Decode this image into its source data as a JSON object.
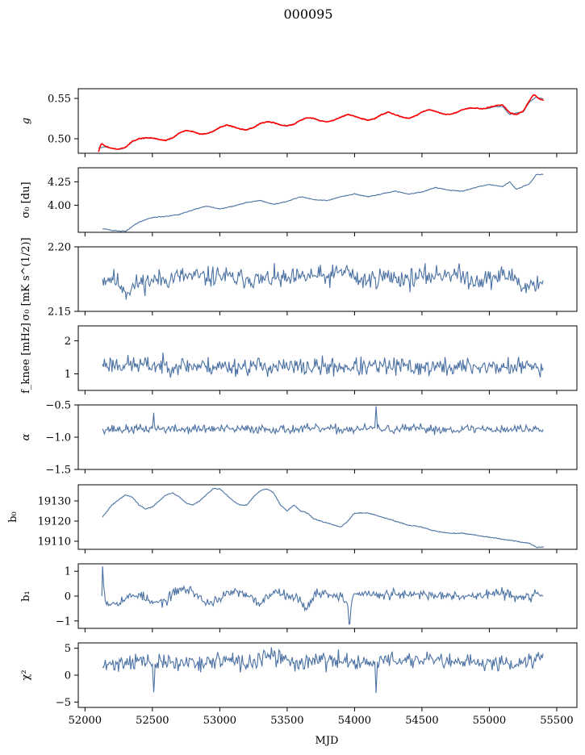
{
  "figure": {
    "title": "000095",
    "xlabel": "MJD"
  },
  "chart_data": [
    {
      "type": "line",
      "ylabel": "g",
      "ylim": [
        0.482,
        0.562
      ],
      "yticks": [
        0.5,
        0.55
      ],
      "ytick_labels": [
        "0.50",
        "0.55"
      ],
      "xlim": [
        51950,
        55650
      ],
      "series": [
        {
          "color": "#4C72A4",
          "x": [
            52100,
            52150,
            52200,
            52250,
            52300,
            52350,
            52400,
            52450,
            52500,
            52550,
            52600,
            52650,
            52700,
            52750,
            52800,
            52850,
            52900,
            52950,
            53000,
            53050,
            53100,
            53150,
            53200,
            53250,
            53300,
            53350,
            53400,
            53450,
            53500,
            53550,
            53600,
            53650,
            53700,
            53750,
            53800,
            53850,
            53900,
            53950,
            54000,
            54050,
            54100,
            54150,
            54200,
            54250,
            54300,
            54350,
            54400,
            54450,
            54500,
            54550,
            54600,
            54650,
            54700,
            54750,
            54800,
            54850,
            54900,
            54950,
            55000,
            55050,
            55100,
            55150,
            55200,
            55250,
            55300,
            55350,
            55400
          ],
          "y": [
            0.489,
            0.49,
            0.488,
            0.487,
            0.489,
            0.496,
            0.5,
            0.501,
            0.501,
            0.499,
            0.498,
            0.501,
            0.507,
            0.51,
            0.509,
            0.506,
            0.506,
            0.509,
            0.514,
            0.517,
            0.515,
            0.512,
            0.511,
            0.514,
            0.519,
            0.521,
            0.52,
            0.517,
            0.516,
            0.518,
            0.523,
            0.526,
            0.525,
            0.522,
            0.521,
            0.523,
            0.527,
            0.53,
            0.528,
            0.525,
            0.523,
            0.525,
            0.53,
            0.533,
            0.53,
            0.527,
            0.525,
            0.528,
            0.533,
            0.536,
            0.534,
            0.531,
            0.53,
            0.532,
            0.536,
            0.538,
            0.538,
            0.537,
            0.538,
            0.54,
            0.54,
            0.53,
            0.532,
            0.533,
            0.546,
            0.552,
            0.549
          ]
        },
        {
          "color": "#FF0000",
          "x": [
            52100,
            52120,
            52150,
            52200,
            52250,
            52300,
            52350,
            52400,
            52450,
            52500,
            52550,
            52600,
            52650,
            52700,
            52750,
            52800,
            52850,
            52900,
            52950,
            53000,
            53050,
            53100,
            53150,
            53200,
            53250,
            53300,
            53350,
            53400,
            53450,
            53500,
            53550,
            53600,
            53650,
            53700,
            53750,
            53800,
            53850,
            53900,
            53950,
            54000,
            54050,
            54100,
            54150,
            54200,
            54250,
            54300,
            54350,
            54400,
            54450,
            54500,
            54550,
            54600,
            54650,
            54700,
            54750,
            54800,
            54850,
            54900,
            54950,
            55000,
            55050,
            55100,
            55130,
            55150,
            55200,
            55250,
            55300,
            55330,
            55350,
            55380,
            55400
          ],
          "y": [
            0.484,
            0.494,
            0.491,
            0.488,
            0.487,
            0.489,
            0.497,
            0.5,
            0.501,
            0.501,
            0.499,
            0.498,
            0.501,
            0.507,
            0.51,
            0.509,
            0.506,
            0.506,
            0.509,
            0.514,
            0.517,
            0.515,
            0.512,
            0.511,
            0.514,
            0.519,
            0.521,
            0.52,
            0.517,
            0.516,
            0.518,
            0.523,
            0.526,
            0.525,
            0.522,
            0.521,
            0.523,
            0.527,
            0.53,
            0.528,
            0.525,
            0.523,
            0.525,
            0.53,
            0.533,
            0.53,
            0.527,
            0.525,
            0.528,
            0.533,
            0.536,
            0.534,
            0.531,
            0.53,
            0.532,
            0.536,
            0.538,
            0.538,
            0.537,
            0.539,
            0.541,
            0.542,
            0.536,
            0.532,
            0.53,
            0.534,
            0.548,
            0.555,
            0.552,
            0.549,
            0.548
          ]
        }
      ]
    },
    {
      "type": "line",
      "ylabel": "σ₀ [du]",
      "ylim": [
        3.71,
        4.4
      ],
      "yticks": [
        4.0,
        4.25
      ],
      "ytick_labels": [
        "4.00",
        "4.25"
      ],
      "xlim": [
        51950,
        55650
      ],
      "series": [
        {
          "color": "#4C72A4",
          "x": [
            52130,
            52200,
            52300,
            52400,
            52500,
            52600,
            52700,
            52800,
            52900,
            53000,
            53100,
            53200,
            53300,
            53400,
            53500,
            53600,
            53700,
            53800,
            53900,
            54000,
            54100,
            54200,
            54300,
            54400,
            54500,
            54600,
            54700,
            54800,
            54900,
            55000,
            55100,
            55150,
            55200,
            55250,
            55300,
            55350,
            55400
          ],
          "y": [
            3.75,
            3.73,
            3.72,
            3.82,
            3.87,
            3.88,
            3.9,
            3.95,
            3.99,
            3.96,
            3.99,
            4.03,
            4.05,
            4.01,
            4.04,
            4.09,
            4.06,
            4.05,
            4.09,
            4.12,
            4.09,
            4.12,
            4.15,
            4.12,
            4.14,
            4.19,
            4.16,
            4.15,
            4.19,
            4.22,
            4.2,
            4.25,
            4.17,
            4.2,
            4.23,
            4.33,
            4.33
          ]
        }
      ]
    },
    {
      "type": "line",
      "ylabel": "σ₀ [mK s^(1/2)]",
      "ylim": [
        2.15,
        2.2
      ],
      "yticks": [
        2.15,
        2.2
      ],
      "ytick_labels": [
        "2.15",
        "2.20"
      ],
      "xlim": [
        51950,
        55650
      ],
      "noise": {
        "mean": 2.175,
        "amplitude": 0.004,
        "seed": 11
      },
      "series": [
        {
          "color": "#4C72A4",
          "x": [
            52130,
            52200,
            52270,
            52300,
            52400,
            52500,
            52600,
            52700,
            52800,
            52900,
            53000,
            53100,
            53200,
            53300,
            53400,
            53500,
            53600,
            53700,
            53800,
            53880,
            53950,
            54000,
            54100,
            54200,
            54300,
            54400,
            54500,
            54600,
            54700,
            54800,
            54900,
            55000,
            55100,
            55200,
            55250,
            55300,
            55400
          ],
          "y": [
            2.175,
            2.176,
            2.17,
            2.165,
            2.172,
            2.174,
            2.175,
            2.177,
            2.177,
            2.176,
            2.178,
            2.175,
            2.176,
            2.174,
            2.176,
            2.174,
            2.176,
            2.178,
            2.176,
            2.18,
            2.182,
            2.175,
            2.174,
            2.177,
            2.176,
            2.175,
            2.177,
            2.178,
            2.18,
            2.177,
            2.174,
            2.175,
            2.178,
            2.176,
            2.168,
            2.17,
            2.174
          ]
        }
      ]
    },
    {
      "type": "line",
      "ylabel": "f_knee [mHz]",
      "ylim": [
        0.5,
        2.45
      ],
      "yticks": [
        1,
        2
      ],
      "ytick_labels": [
        "1",
        "2"
      ],
      "xlim": [
        51950,
        55650
      ],
      "noise": {
        "mean": 0,
        "amplitude": 0.14,
        "seed": 23
      },
      "series": [
        {
          "color": "#4C72A4",
          "x": [
            52130,
            52300,
            52500,
            52700,
            52900,
            53100,
            53300,
            53500,
            53700,
            53900,
            54100,
            54300,
            54500,
            54700,
            54900,
            55100,
            55300,
            55400
          ],
          "y": [
            1.3,
            1.28,
            1.25,
            1.25,
            1.23,
            1.22,
            1.23,
            1.2,
            1.2,
            1.22,
            1.2,
            1.22,
            1.2,
            1.2,
            1.22,
            1.2,
            1.22,
            1.18
          ]
        }
      ]
    },
    {
      "type": "line",
      "ylabel": "α",
      "ylim": [
        -1.5,
        -0.5
      ],
      "yticks": [
        -1.5,
        -1.0,
        -0.5
      ],
      "ytick_labels": [
        "−1.5",
        "−1.0",
        "−0.5"
      ],
      "xlim": [
        51950,
        55650
      ],
      "noise": {
        "mean": 0,
        "amplitude": 0.035,
        "seed": 37
      },
      "series": [
        {
          "color": "#4C72A4",
          "x": [
            52130,
            52300,
            52500,
            52510,
            52520,
            52700,
            52900,
            53100,
            53300,
            53500,
            53700,
            53900,
            54100,
            54150,
            54160,
            54170,
            54300,
            54500,
            54700,
            54900,
            55100,
            55300,
            55400
          ],
          "y": [
            -0.87,
            -0.88,
            -0.87,
            -0.62,
            -0.87,
            -0.88,
            -0.87,
            -0.88,
            -0.87,
            -0.88,
            -0.87,
            -0.88,
            -0.87,
            -0.85,
            -0.52,
            -0.87,
            -0.88,
            -0.87,
            -0.88,
            -0.87,
            -0.88,
            -0.87,
            -0.88
          ]
        }
      ]
    },
    {
      "type": "line",
      "ylabel": "b₀",
      "ylim": [
        19106,
        19138
      ],
      "yticks": [
        19110,
        19120,
        19130
      ],
      "ytick_labels": [
        "19110",
        "19120",
        "19130"
      ],
      "xlim": [
        51950,
        55650
      ],
      "series": [
        {
          "color": "#4C72A4",
          "x": [
            52130,
            52200,
            52300,
            52350,
            52400,
            52450,
            52500,
            52550,
            52600,
            52650,
            52700,
            52750,
            52800,
            52850,
            52900,
            52950,
            53000,
            53050,
            53100,
            53150,
            53200,
            53250,
            53300,
            53350,
            53400,
            53450,
            53500,
            53550,
            53600,
            53650,
            53700,
            53750,
            53800,
            53850,
            53900,
            53950,
            54000,
            54100,
            54200,
            54300,
            54400,
            54500,
            54600,
            54700,
            54800,
            54900,
            55000,
            55100,
            55200,
            55300,
            55350,
            55400
          ],
          "y": [
            19122,
            19128,
            19133,
            19132,
            19128,
            19126,
            19127,
            19130,
            19133,
            19134,
            19132,
            19129,
            19128,
            19130,
            19133,
            19136,
            19136,
            19133,
            19130,
            19128,
            19128,
            19132,
            19135,
            19136,
            19134,
            19128,
            19125,
            19128,
            19125,
            19124,
            19121,
            19120,
            19119,
            19118,
            19117,
            19120,
            19124,
            19124,
            19122,
            19120,
            19118,
            19117,
            19115,
            19114,
            19114,
            19113,
            19112,
            19111,
            19110,
            19109,
            19107,
            19107
          ]
        }
      ]
    },
    {
      "type": "line",
      "ylabel": "b₁",
      "ylim": [
        -1.3,
        1.3
      ],
      "yticks": [
        -1,
        0,
        1
      ],
      "ytick_labels": [
        "−1",
        "0",
        "1"
      ],
      "xlim": [
        51950,
        55650
      ],
      "noise": {
        "mean": 0,
        "amplitude": 0.1,
        "seed": 53
      },
      "series": [
        {
          "color": "#4C72A4",
          "x": [
            52125,
            52130,
            52150,
            52200,
            52300,
            52400,
            52500,
            52600,
            52700,
            52800,
            52900,
            53000,
            53100,
            53200,
            53300,
            53400,
            53500,
            53600,
            53650,
            53700,
            53800,
            53900,
            53950,
            53960,
            53980,
            54000,
            54100,
            54200,
            54300,
            54400,
            54500,
            54600,
            54700,
            54800,
            54900,
            55000,
            55100,
            55200,
            55250,
            55300,
            55350,
            55400
          ],
          "y": [
            0.0,
            1.2,
            -0.2,
            -0.3,
            -0.1,
            0.1,
            -0.3,
            -0.2,
            0.3,
            0.2,
            -0.3,
            -0.1,
            0.2,
            0.0,
            -0.3,
            0.2,
            0.1,
            -0.2,
            -0.5,
            0.1,
            0.1,
            0.0,
            -0.4,
            -1.15,
            -0.2,
            0.1,
            0.1,
            0.0,
            0.1,
            0.0,
            0.1,
            0.0,
            0.1,
            0.0,
            0.0,
            0.1,
            0.1,
            0.0,
            0.0,
            -0.1,
            0.1,
            0.0
          ]
        }
      ]
    },
    {
      "type": "line",
      "ylabel": "χ²",
      "ylim": [
        -6,
        6
      ],
      "yticks": [
        -5,
        0,
        5
      ],
      "ytick_labels": [
        "−5",
        "0",
        "5"
      ],
      "xlim": [
        51950,
        55650
      ],
      "xticks": [
        52000,
        52500,
        53000,
        53500,
        54000,
        54500,
        55000,
        55500
      ],
      "xtick_labels": [
        "52000",
        "52500",
        "53000",
        "53500",
        "54000",
        "54500",
        "55000",
        "55500"
      ],
      "noise": {
        "mean": 0,
        "amplitude": 0.8,
        "seed": 71
      },
      "series": [
        {
          "color": "#4C72A4",
          "x": [
            52130,
            52200,
            52300,
            52400,
            52500,
            52510,
            52520,
            52600,
            52700,
            52800,
            52900,
            53000,
            53100,
            53200,
            53300,
            53400,
            53500,
            53600,
            53700,
            53800,
            53900,
            54000,
            54100,
            54150,
            54160,
            54170,
            54200,
            54300,
            54400,
            54500,
            54600,
            54700,
            54800,
            54900,
            55000,
            55100,
            55200,
            55300,
            55400
          ],
          "y": [
            1.5,
            2.0,
            2.5,
            2.8,
            2.0,
            -3.2,
            2.0,
            2.5,
            2.0,
            2.8,
            2.0,
            3.0,
            2.5,
            2.0,
            3.0,
            3.5,
            2.8,
            2.0,
            3.0,
            2.5,
            2.5,
            2.8,
            2.0,
            2.5,
            -3.3,
            2.5,
            3.0,
            2.5,
            3.0,
            2.5,
            2.8,
            2.0,
            2.5,
            2.0,
            2.5,
            2.5,
            2.0,
            3.0,
            4.0
          ]
        }
      ]
    }
  ]
}
